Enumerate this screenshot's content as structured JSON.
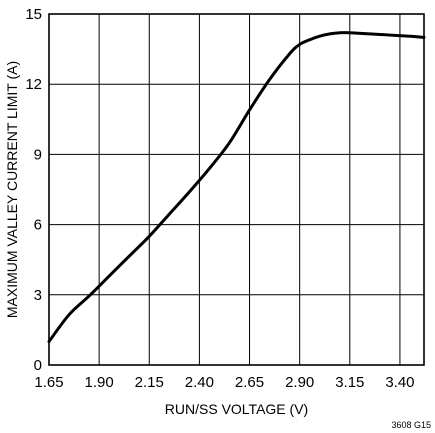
{
  "chart_data": {
    "type": "line",
    "xlabel": "RUN/SS VOLTAGE (V)",
    "ylabel": "MAXIMUM VALLEY CURRENT LIMIT (A)",
    "xlim": [
      1.65,
      3.52
    ],
    "ylim": [
      0,
      15
    ],
    "x_ticks": [
      "1.65",
      "1.90",
      "2.15",
      "2.40",
      "2.65",
      "2.90",
      "3.15",
      "3.40"
    ],
    "y_ticks": [
      "0",
      "3",
      "6",
      "9",
      "12",
      "15"
    ],
    "grid": true,
    "series": [
      {
        "x": [
          1.65,
          1.75,
          1.85,
          1.95,
          2.05,
          2.15,
          2.25,
          2.35,
          2.45,
          2.55,
          2.65,
          2.75,
          2.85,
          2.9,
          2.95,
          3.0,
          3.05,
          3.1,
          3.15,
          3.25,
          3.35,
          3.45,
          3.52
        ],
        "y": [
          1.0,
          2.15,
          2.95,
          3.8,
          4.65,
          5.5,
          6.45,
          7.4,
          8.4,
          9.5,
          10.9,
          12.2,
          13.3,
          13.7,
          13.9,
          14.05,
          14.15,
          14.2,
          14.2,
          14.15,
          14.1,
          14.05,
          14.0
        ]
      }
    ],
    "footnote": "3608 G15"
  }
}
